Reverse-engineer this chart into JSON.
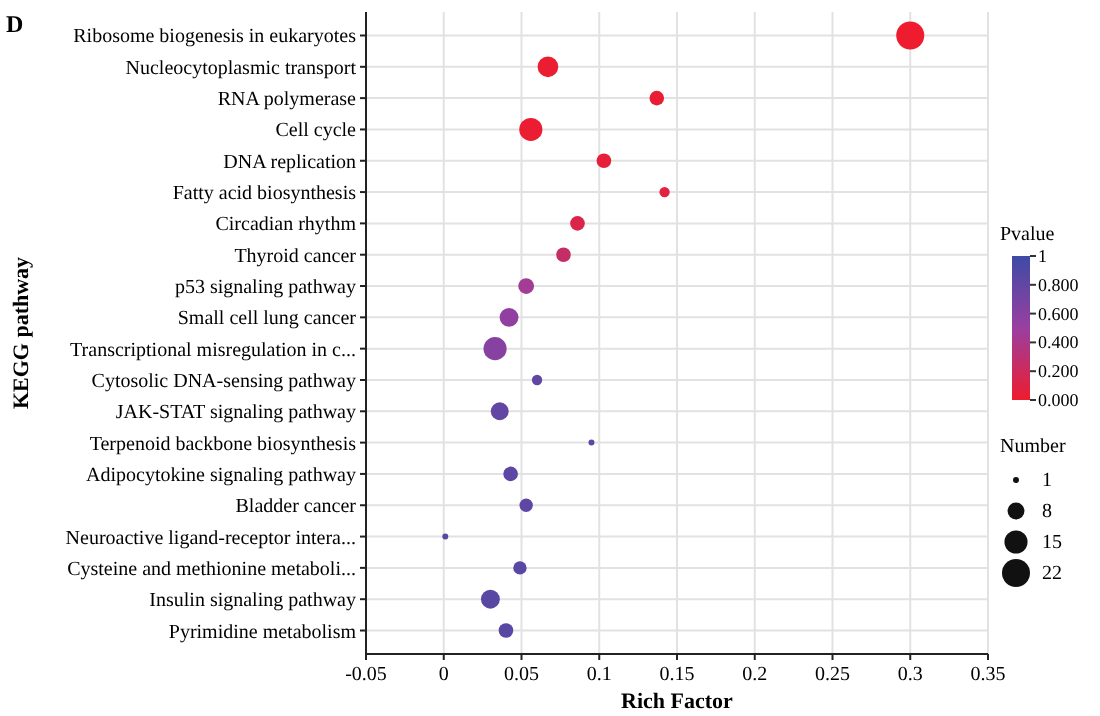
{
  "chart_data": {
    "type": "bubble",
    "orientation": "horizontal",
    "title": "D",
    "xlabel": "Rich Factor",
    "ylabel": "KEGG pathway",
    "categories": [
      "Ribosome biogenesis in eukaryotes",
      "Nucleocytoplasmic transport",
      "RNA polymerase",
      "Cell cycle",
      "DNA replication",
      "Fatty acid biosynthesis",
      "Circadian rhythm",
      "Thyroid cancer",
      "p53 signaling pathway",
      "Small cell lung cancer",
      "Transcriptional misregulation in c...",
      "Cytosolic DNA-sensing pathway",
      "JAK-STAT signaling pathway",
      "Terpenoid backbone biosynthesis",
      "Adipocytokine signaling pathway",
      "Bladder cancer",
      "Neuroactive ligand-receptor intera...",
      "Cysteine and methionine metaboli...",
      "Insulin signaling pathway",
      "Pyrimidine metabolism"
    ],
    "values": [
      0.3,
      0.067,
      0.137,
      0.056,
      0.103,
      0.142,
      0.086,
      0.077,
      0.053,
      0.042,
      0.033,
      0.06,
      0.036,
      0.095,
      0.043,
      0.053,
      0.001,
      0.049,
      0.03,
      0.04
    ],
    "sizes": [
      22,
      12,
      6,
      15,
      6,
      3,
      6,
      6,
      7,
      10,
      15,
      3,
      9,
      1,
      6,
      5,
      1,
      5,
      10,
      6
    ],
    "cvalues": [
      0.0,
      0.02,
      0.03,
      0.02,
      0.05,
      0.08,
      0.12,
      0.25,
      0.45,
      0.55,
      0.6,
      0.8,
      0.8,
      0.82,
      0.82,
      0.82,
      0.85,
      0.85,
      0.85,
      0.85
    ],
    "size_legend": [
      1,
      8,
      15,
      22
    ],
    "legend_title": "Number",
    "clabel": "Pvalue",
    "clim": [
      0,
      1
    ],
    "cticks": [
      {
        "value": 0,
        "label": "0.000"
      },
      {
        "value": 0.2,
        "label": "0.200"
      },
      {
        "value": 0.4,
        "label": "0.400"
      },
      {
        "value": 0.6,
        "label": "0.600"
      },
      {
        "value": 0.8,
        "label": "0.800"
      },
      {
        "value": 1,
        "label": "1"
      }
    ],
    "xlim": [
      -0.05,
      0.35
    ],
    "xticks": [
      -0.05,
      0,
      0.05,
      0.1,
      0.15,
      0.2,
      0.25,
      0.3,
      0.35
    ],
    "grid": true,
    "marker": "circle"
  }
}
